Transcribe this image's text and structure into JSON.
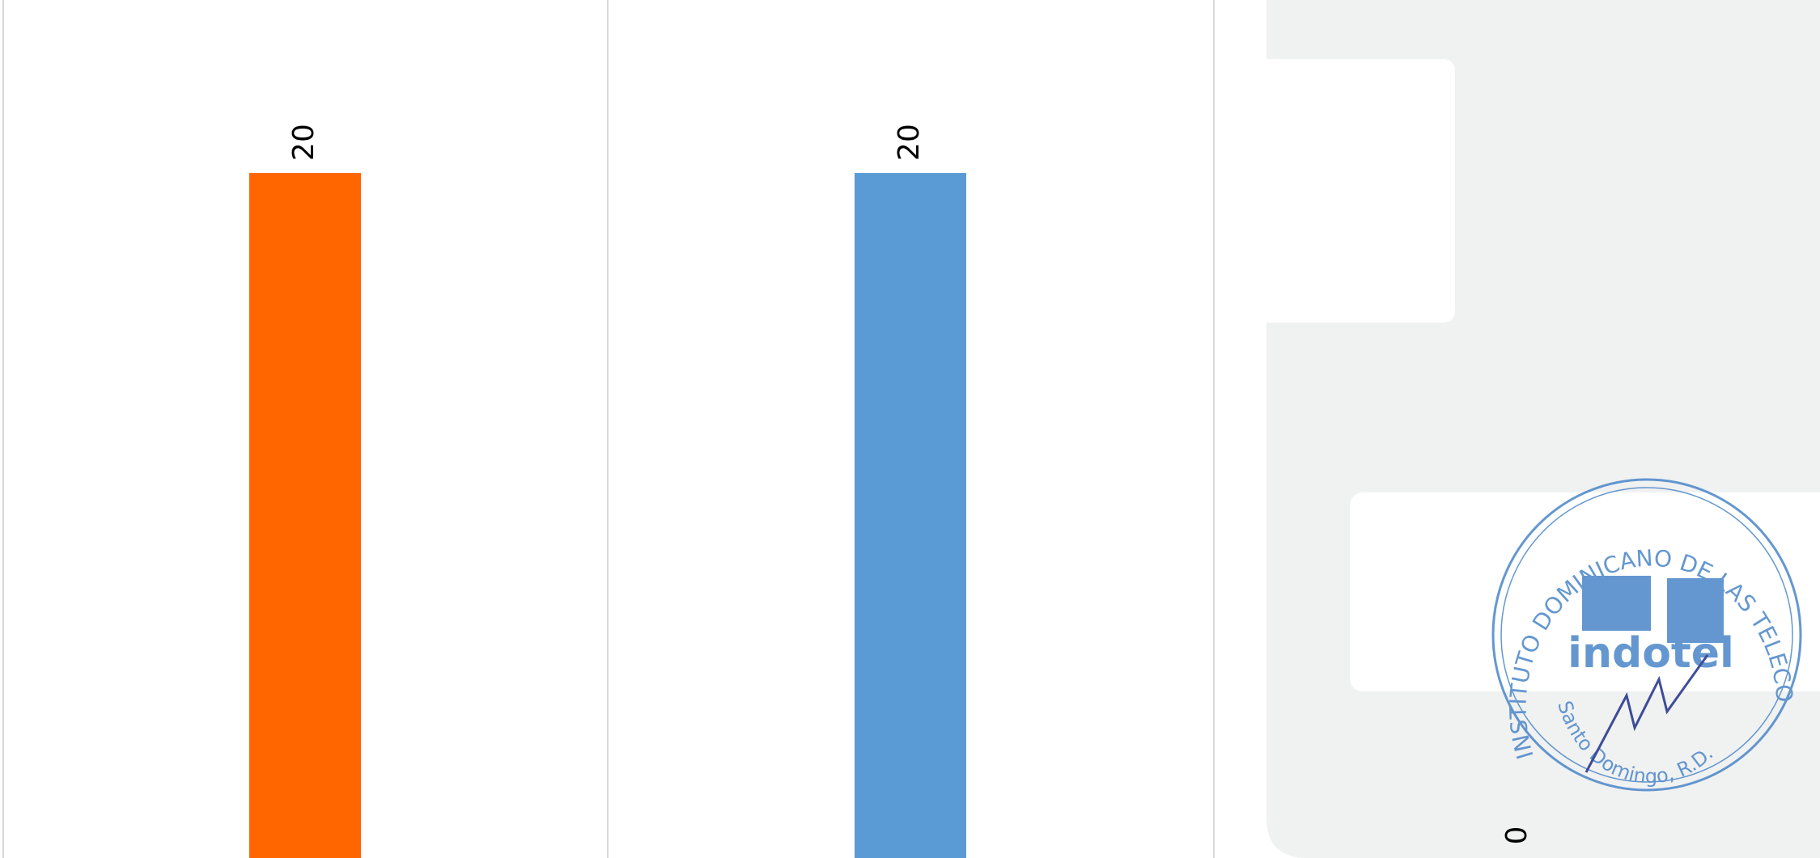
{
  "chart_data": {
    "type": "bar",
    "categories": [
      null,
      null,
      null
    ],
    "values": [
      20,
      20,
      0
    ],
    "colors": [
      "#ff6600",
      "#5b9bd5",
      "#5b9bd5"
    ],
    "stamp": {
      "ring_top": "INSTITUTO DOMINICANO DE LAS TELECOMUNICACIONES",
      "logo": "indotel",
      "ring_bottom": "Santo Domingo, R.D."
    }
  }
}
